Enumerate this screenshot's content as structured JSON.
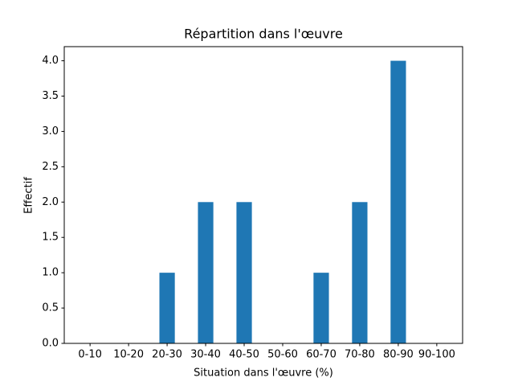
{
  "chart_data": {
    "type": "bar",
    "title": "Répartition dans l'œuvre",
    "xlabel": "Situation dans l'œuvre (%)",
    "ylabel": "Effectif",
    "categories": [
      "0-10",
      "10-20",
      "20-30",
      "30-40",
      "40-50",
      "50-60",
      "60-70",
      "70-80",
      "80-90",
      "90-100"
    ],
    "values": [
      0,
      0,
      1,
      2,
      2,
      0,
      1,
      2,
      4,
      0
    ],
    "color": "#1f77b4",
    "ylim": [
      0,
      4.2
    ],
    "yticks": [
      {
        "value": 0,
        "label": "0.0"
      },
      {
        "value": 0.5,
        "label": "0.5"
      },
      {
        "value": 1,
        "label": "1.0"
      },
      {
        "value": 1.5,
        "label": "1.5"
      },
      {
        "value": 2,
        "label": "2.0"
      },
      {
        "value": 2.5,
        "label": "2.5"
      },
      {
        "value": 3,
        "label": "3.0"
      },
      {
        "value": 3.5,
        "label": "3.5"
      },
      {
        "value": 4,
        "label": "4.0"
      }
    ],
    "grid": false
  }
}
